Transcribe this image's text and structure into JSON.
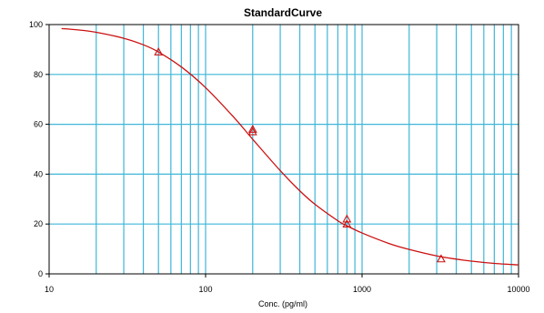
{
  "colors": {
    "background": "#ffffff",
    "grid": "#3fb6d8",
    "axis": "#000000",
    "series": "#cc1111"
  },
  "chart_data": {
    "type": "scatter",
    "title": "StandardCurve",
    "xlabel": "Conc. (pg/ml)",
    "ylabel": "",
    "xscale": "log",
    "xlim": [
      10,
      10000
    ],
    "ylim": [
      0,
      100
    ],
    "x_ticks": [
      "10",
      "100",
      "1000",
      "10000"
    ],
    "y_ticks": [
      "0",
      "20",
      "40",
      "60",
      "80",
      "100"
    ],
    "grid": true,
    "legend": "none",
    "series": [
      {
        "kind": "points",
        "marker": "triangle",
        "points": [
          {
            "x": 50,
            "y": 89
          },
          {
            "x": 200,
            "y": 58
          },
          {
            "x": 200,
            "y": 57
          },
          {
            "x": 800,
            "y": 22
          },
          {
            "x": 800,
            "y": 20
          },
          {
            "x": 3200,
            "y": 6
          }
        ]
      },
      {
        "kind": "fit-curve",
        "points": [
          {
            "x": 12,
            "y": 98.4
          },
          {
            "x": 15,
            "y": 97.9
          },
          {
            "x": 20,
            "y": 96.9
          },
          {
            "x": 30,
            "y": 94.5
          },
          {
            "x": 40,
            "y": 91.9
          },
          {
            "x": 50,
            "y": 89.0
          },
          {
            "x": 70,
            "y": 83.0
          },
          {
            "x": 100,
            "y": 74.7
          },
          {
            "x": 150,
            "y": 63.1
          },
          {
            "x": 200,
            "y": 54.0
          },
          {
            "x": 300,
            "y": 41.4
          },
          {
            "x": 400,
            "y": 33.3
          },
          {
            "x": 500,
            "y": 27.9
          },
          {
            "x": 700,
            "y": 21.3
          },
          {
            "x": 800,
            "y": 19.3
          },
          {
            "x": 1000,
            "y": 16.4
          },
          {
            "x": 1500,
            "y": 12.1
          },
          {
            "x": 2000,
            "y": 9.8
          },
          {
            "x": 3000,
            "y": 7.2
          },
          {
            "x": 4000,
            "y": 5.9
          },
          {
            "x": 5000,
            "y": 5.1
          },
          {
            "x": 7000,
            "y": 4.2
          },
          {
            "x": 10000,
            "y": 3.6
          }
        ]
      }
    ]
  }
}
